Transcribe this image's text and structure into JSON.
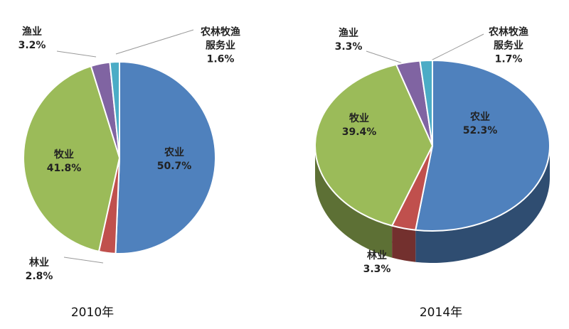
{
  "chart_data": [
    {
      "type": "pie",
      "title": "2010年",
      "categories": [
        "农业",
        "林业",
        "牧业",
        "渔业",
        "农林牧渔服务业"
      ],
      "values": [
        50.7,
        2.8,
        41.8,
        3.2,
        1.6
      ],
      "value_labels": [
        "50.7%",
        "2.8%",
        "41.8%",
        "3.2%",
        "1.6%"
      ],
      "colors": [
        "#4f81bd",
        "#c0504d",
        "#9bbb59",
        "#8064a2",
        "#4bacc6"
      ]
    },
    {
      "type": "pie3d",
      "title": "2014年",
      "categories": [
        "农业",
        "林业",
        "牧业",
        "渔业",
        "农林牧渔服务业"
      ],
      "values": [
        52.3,
        3.3,
        39.4,
        3.3,
        1.7
      ],
      "value_labels": [
        "52.3%",
        "3.3%",
        "39.4%",
        "3.3%",
        "1.7%"
      ],
      "colors": [
        "#4f81bd",
        "#c0504d",
        "#9bbb59",
        "#8064a2",
        "#4bacc6"
      ]
    }
  ]
}
